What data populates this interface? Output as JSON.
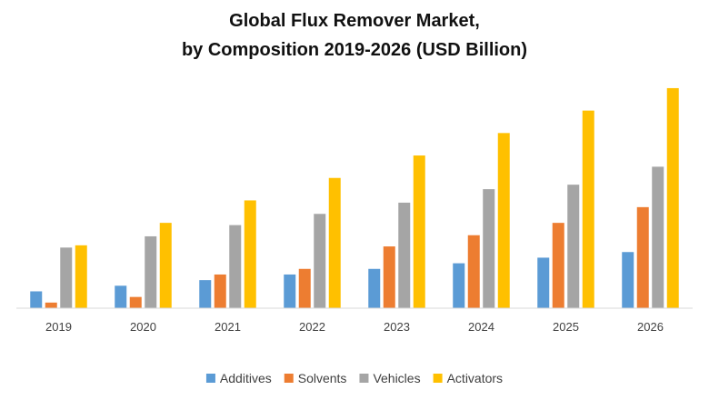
{
  "chart_data": {
    "type": "bar",
    "title": "Global Flux Remover Market,",
    "subtitle": "by Composition 2019-2026 (USD Billion)",
    "xlabel": "",
    "ylabel": "",
    "categories": [
      "2019",
      "2020",
      "2021",
      "2022",
      "2023",
      "2024",
      "2025",
      "2026"
    ],
    "ylim": [
      0,
      10
    ],
    "grid": false,
    "legend_position": "bottom",
    "series": [
      {
        "name": "Additives",
        "color": "#5B9BD5",
        "values": [
          0.75,
          1.0,
          1.25,
          1.5,
          1.75,
          2.0,
          2.25,
          2.5
        ]
      },
      {
        "name": "Solvents",
        "color": "#ED7D31",
        "values": [
          0.25,
          0.5,
          1.5,
          1.75,
          2.75,
          3.25,
          3.8,
          4.5
        ]
      },
      {
        "name": "Vehicles",
        "color": "#A5A5A5",
        "values": [
          2.7,
          3.2,
          3.7,
          4.2,
          4.7,
          5.3,
          5.5,
          6.3
        ]
      },
      {
        "name": "Activators",
        "color": "#FFC000",
        "values": [
          2.8,
          3.8,
          4.8,
          5.8,
          6.8,
          7.8,
          8.8,
          9.8
        ]
      }
    ]
  }
}
